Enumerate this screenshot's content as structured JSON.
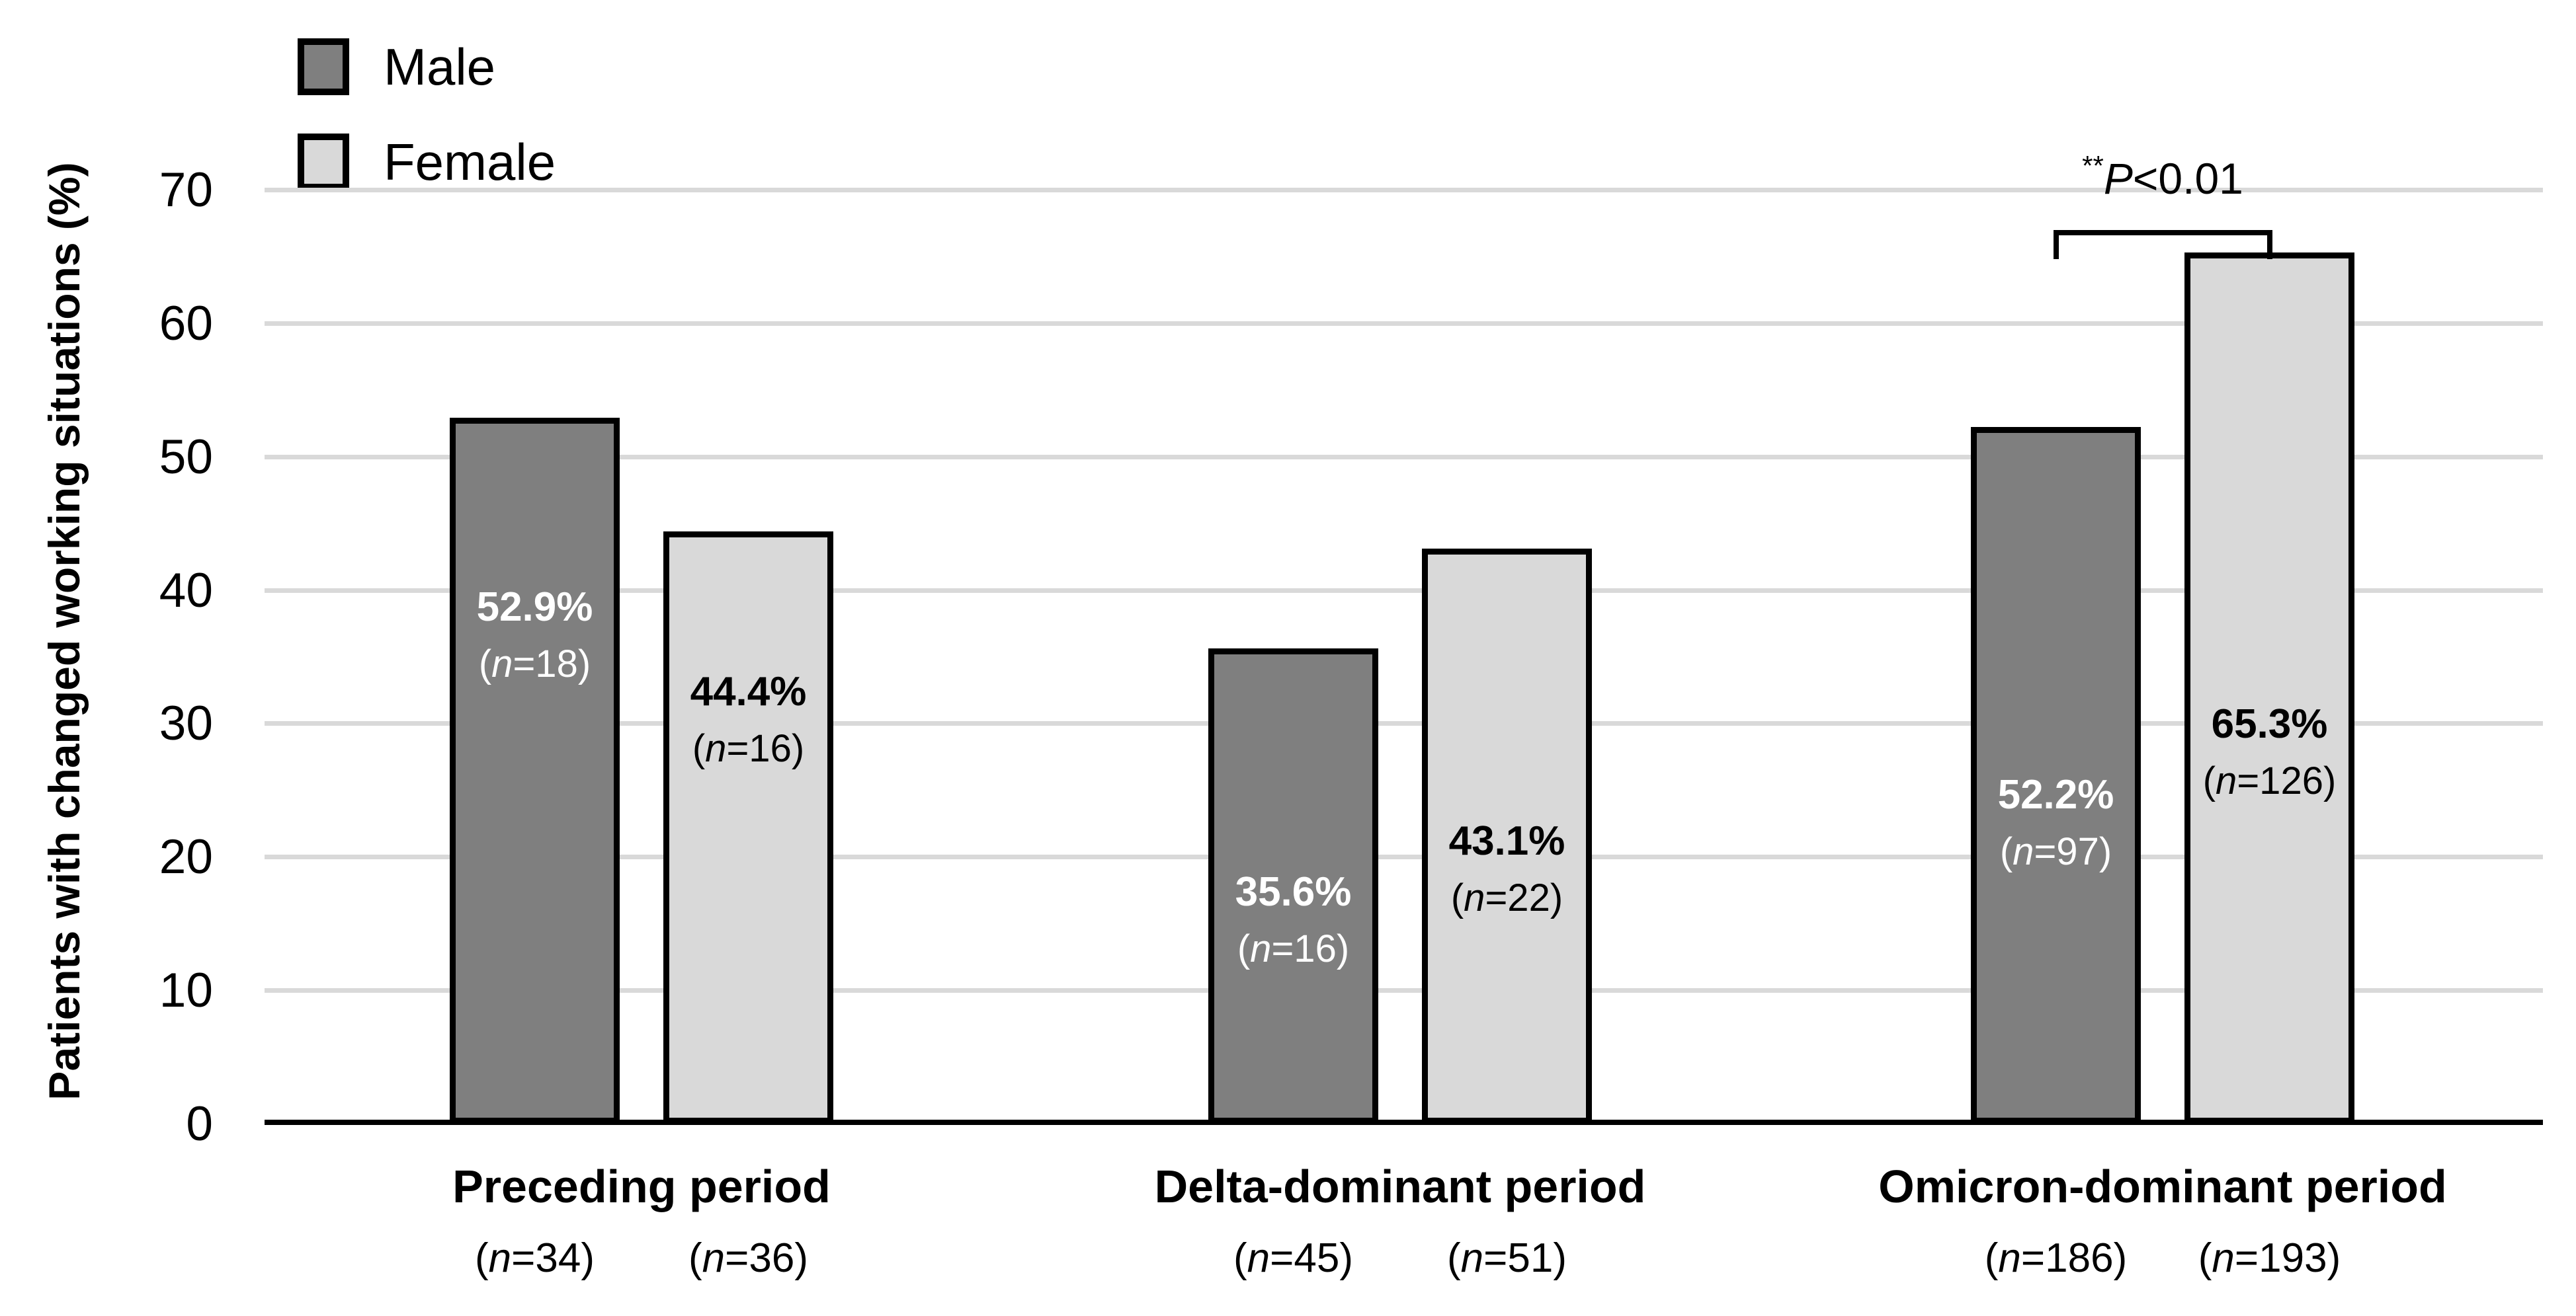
{
  "legend": {
    "items": [
      {
        "label": "Male",
        "color": "#7f7f7f"
      },
      {
        "label": "Female",
        "color": "#d9d9d9"
      }
    ]
  },
  "y_axis": {
    "title": "Patients with changed working situations (%)"
  },
  "chart_data": {
    "type": "bar",
    "title": "",
    "xlabel": "",
    "ylabel": "Patients with changed working situations (%)",
    "ylim": [
      0,
      70
    ],
    "yticks": [
      0,
      10,
      20,
      30,
      40,
      50,
      60,
      70
    ],
    "grid": true,
    "legend_position": "top-left",
    "categories": [
      "Preceding period",
      "Delta-dominant period",
      "Omicron-dominant period"
    ],
    "series": [
      {
        "name": "Male",
        "color": "#7f7f7f",
        "label_color": "#ffffff",
        "values": [
          52.9,
          35.6,
          52.2
        ],
        "bar_n": [
          18,
          16,
          97
        ],
        "group_n": [
          34,
          45,
          186
        ]
      },
      {
        "name": "Female",
        "color": "#d9d9d9",
        "label_color": "#000000",
        "values": [
          44.4,
          43.1,
          65.3
        ],
        "bar_n": [
          16,
          22,
          126
        ],
        "group_n": [
          36,
          51,
          193
        ]
      }
    ],
    "significance": {
      "stars": "**",
      "p_label": "P<0.01",
      "category": "Omicron-dominant period",
      "between": [
        "Male",
        "Female"
      ]
    }
  }
}
